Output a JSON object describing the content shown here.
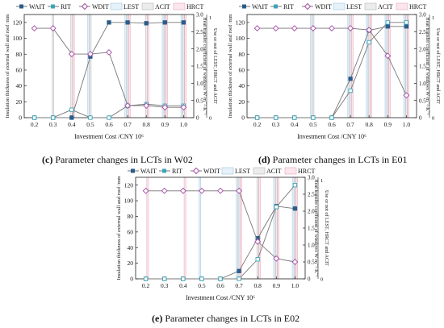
{
  "shared": {
    "xlabel": "Investment Cost /CNY 10⁶",
    "ylabel_left": "Insulation thickness of external wall and roof /mm",
    "ylabel_right_main": "Heat transfer coefficient of windows W·m⁻²·K⁻¹",
    "ylabel_right_secondary": "Use or not of LEST, HRCT and ACIT",
    "legend": [
      "WAIT",
      "RIT",
      "WDIT",
      "LEST",
      "ACIT",
      "HRCT"
    ],
    "colors": {
      "wait": "#2b5d8a",
      "rit": "#3aa6b9",
      "wdit": "#a64ca6",
      "lest_fill": "#e6f1f9",
      "lest_edge": "#9cc6e3",
      "acit_fill": "#ececec",
      "acit_edge": "#b5b5b5",
      "hrct_fill": "#fbe6ec",
      "hrct_edge": "#e3a4b6",
      "line": "#777777"
    }
  },
  "panels": [
    {
      "caption_label": "(c)",
      "caption_text": "Parameter changes in LCTs in W02",
      "chart_data": {
        "type": "line",
        "x": [
          0.2,
          0.3,
          0.4,
          0.5,
          0.6,
          0.7,
          0.8,
          0.9,
          1.0
        ],
        "xticks": [
          "0.2",
          "0.3",
          "0.4",
          "0.5",
          "0.6",
          "0.7",
          "0.8",
          "0.9",
          "1.0"
        ],
        "yticks_left": [
          "0",
          "20",
          "40",
          "60",
          "80",
          "100",
          "120"
        ],
        "yticks_right": [
          "0",
          "0.5",
          "1.0",
          "1.5",
          "2.0",
          "2.5",
          "3.0"
        ],
        "ylim_left": [
          0,
          130
        ],
        "ylim_right": [
          0,
          3.0
        ],
        "series": [
          {
            "name": "WAIT",
            "axis": "left",
            "values": [
              0,
              0,
              0,
              77,
              120,
              120,
              119,
              120,
              120
            ]
          },
          {
            "name": "RIT",
            "axis": "left",
            "values": [
              0,
              0,
              10,
              0,
              0,
              15,
              17,
              15,
              15
            ]
          },
          {
            "name": "WDIT",
            "axis": "right",
            "values": [
              2.6,
              2.6,
              1.85,
              1.85,
              1.9,
              0.35,
              0.35,
              0.3,
              0.3
            ]
          }
        ],
        "bands": {
          "LEST": [
            0,
            0,
            0,
            1,
            0,
            1,
            0,
            1,
            1
          ],
          "ACIT": [
            0,
            1,
            1,
            1,
            0,
            1,
            1,
            1,
            1
          ],
          "HRCT": [
            0,
            0,
            1,
            0,
            0,
            1,
            1,
            1,
            1
          ]
        }
      }
    },
    {
      "caption_label": "(d)",
      "caption_text": "Parameter changes in LCTs in E01",
      "chart_data": {
        "type": "line",
        "x": [
          0.2,
          0.3,
          0.4,
          0.5,
          0.6,
          0.7,
          0.8,
          0.9,
          1.0
        ],
        "xticks": [
          "0.2",
          "0.3",
          "0.4",
          "0.5",
          "0.6",
          "0.7",
          "0.8",
          "0.9",
          "1.0"
        ],
        "yticks_left": [
          "0",
          "20",
          "40",
          "60",
          "80",
          "100",
          "120"
        ],
        "yticks_right": [
          "0",
          "0.5",
          "1.0",
          "1.5",
          "2.0",
          "2.5",
          "3.0"
        ],
        "ylim_left": [
          0,
          130
        ],
        "ylim_right": [
          0,
          3.0
        ],
        "series": [
          {
            "name": "WAIT",
            "axis": "left",
            "values": [
              0,
              0,
              0,
              0,
              0,
              49,
              110,
              115,
              115
            ]
          },
          {
            "name": "RIT",
            "axis": "left",
            "values": [
              0,
              0,
              0,
              0,
              0,
              34,
              95,
              120,
              120
            ]
          },
          {
            "name": "WDIT",
            "axis": "right",
            "values": [
              2.6,
              2.6,
              2.6,
              2.6,
              2.6,
              2.6,
              2.55,
              1.8,
              0.65
            ]
          }
        ],
        "bands": {
          "LEST": [
            0,
            0,
            0,
            1,
            0,
            1,
            1,
            1,
            1
          ],
          "ACIT": [
            0,
            0,
            0,
            1,
            0,
            1,
            1,
            1,
            1
          ],
          "HRCT": [
            0,
            0,
            0,
            0,
            0,
            1,
            1,
            1,
            1
          ]
        }
      }
    },
    {
      "caption_label": "(e)",
      "caption_text": "Parameter changes in LCTs in E02",
      "chart_data": {
        "type": "line",
        "x": [
          0.2,
          0.3,
          0.4,
          0.5,
          0.6,
          0.7,
          0.8,
          0.9,
          1.0
        ],
        "xticks": [
          "0.2",
          "0.3",
          "0.4",
          "0.5",
          "0.6",
          "0.7",
          "0.8",
          "0.9",
          "1.0"
        ],
        "yticks_left": [
          "0",
          "20",
          "40",
          "60",
          "80",
          "100",
          "120"
        ],
        "yticks_right": [
          "0",
          "0.5",
          "1.0",
          "1.5",
          "2.0",
          "2.5",
          "3.0"
        ],
        "ylim_left": [
          0,
          130
        ],
        "ylim_right": [
          0,
          3.0
        ],
        "series": [
          {
            "name": "WAIT",
            "axis": "left",
            "values": [
              0,
              0,
              0,
              0,
              0,
              10,
              52,
              93,
              90
            ]
          },
          {
            "name": "RIT",
            "axis": "left",
            "values": [
              0,
              0,
              0,
              0,
              0,
              0,
              25,
              92,
              120
            ]
          },
          {
            "name": "WDIT",
            "axis": "right",
            "values": [
              2.6,
              2.6,
              2.6,
              2.6,
              2.6,
              2.6,
              1.1,
              0.6,
              0.5
            ]
          }
        ],
        "bands": {
          "LEST": [
            0,
            0,
            0,
            1,
            0,
            1,
            0,
            1,
            1
          ],
          "ACIT": [
            0,
            0,
            0,
            0,
            0,
            1,
            1,
            1,
            1
          ],
          "HRCT": [
            1,
            0,
            1,
            0,
            0,
            1,
            1,
            1,
            1
          ]
        }
      }
    }
  ]
}
